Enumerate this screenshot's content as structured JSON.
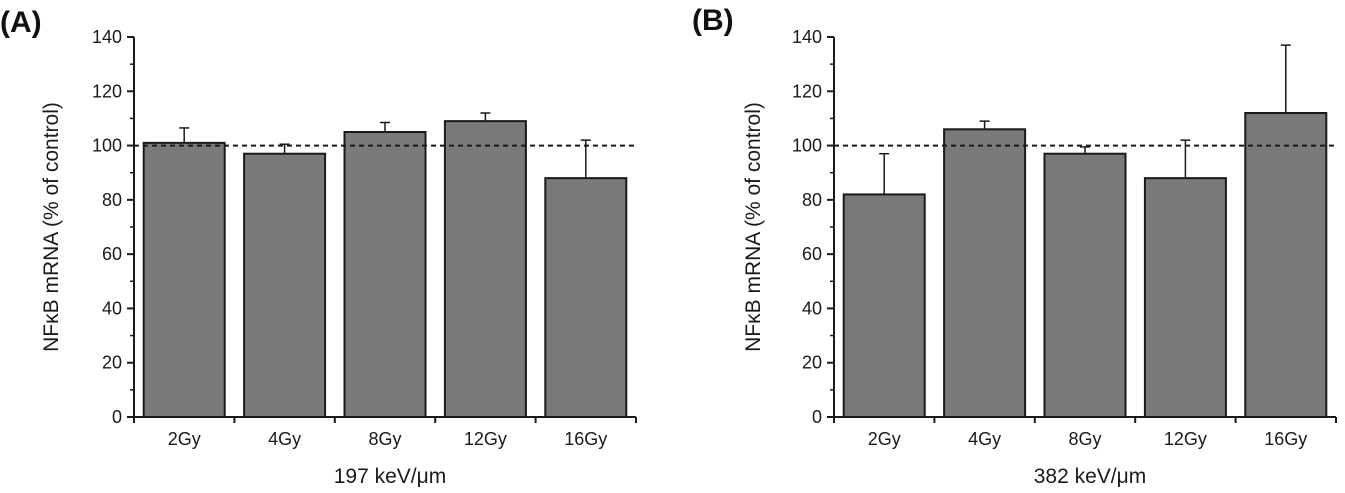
{
  "colors": {
    "bar": "#7a7a7a",
    "bar_stroke": "#1a1a1a",
    "axis": "#1a1a1a",
    "reference_line": "#1a1a1a"
  },
  "chart_data": [
    {
      "type": "bar",
      "panel_label": "(A)",
      "categories": [
        "2Gy",
        "4Gy",
        "8Gy",
        "12Gy",
        "16Gy"
      ],
      "values": [
        101,
        97,
        105,
        109,
        88
      ],
      "errors": [
        5.5,
        3.5,
        3.5,
        3,
        14
      ],
      "xlabel": "197 keV/μm",
      "ylabel": "NFκB mRNA (% of control)",
      "ylim": [
        0,
        140
      ],
      "yticks": [
        0,
        20,
        40,
        60,
        80,
        100,
        120,
        140
      ],
      "reference_line": 100,
      "grid": false
    },
    {
      "type": "bar",
      "panel_label": "(B)",
      "categories": [
        "2Gy",
        "4Gy",
        "8Gy",
        "12Gy",
        "16Gy"
      ],
      "values": [
        82,
        106,
        97,
        88,
        112
      ],
      "errors": [
        15,
        3,
        2.5,
        14,
        25
      ],
      "xlabel": "382 keV/μm",
      "ylabel": "NFκB mRNA (% of control)",
      "ylim": [
        0,
        140
      ],
      "yticks": [
        0,
        20,
        40,
        60,
        80,
        100,
        120,
        140
      ],
      "reference_line": 100,
      "grid": false
    }
  ]
}
